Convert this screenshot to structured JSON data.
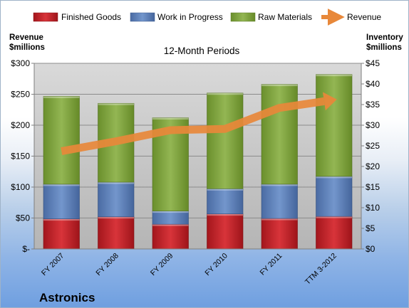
{
  "chart_data": {
    "type": "bar",
    "stacked": true,
    "title": "12-Month Periods",
    "company": "Astronics",
    "categories": [
      "FY 2007",
      "FY 2008",
      "FY 2009",
      "FY 2010",
      "FY 2011",
      "TTM 3-2012"
    ],
    "series": [
      {
        "name": "Finished Goods",
        "axis": "right",
        "color": "#c0292f",
        "values": [
          7.3,
          7.8,
          6.0,
          8.5,
          7.4,
          7.9
        ]
      },
      {
        "name": "Work in Progress",
        "axis": "right",
        "color": "#5b7fb8",
        "values": [
          8.4,
          8.4,
          3.2,
          6.1,
          8.3,
          9.7
        ]
      },
      {
        "name": "Raw Materials",
        "axis": "right",
        "color": "#7ea23f",
        "values": [
          21.3,
          19.1,
          22.6,
          23.2,
          24.2,
          24.7
        ]
      },
      {
        "name": "Revenue",
        "axis": "left",
        "type": "line",
        "color": "#e8883a",
        "values": [
          158,
          174,
          192,
          194,
          228,
          241
        ]
      }
    ],
    "left_axis": {
      "label_line1": "Revenue",
      "label_line2": "$millions",
      "ylim": [
        0,
        300
      ],
      "ticks": [
        0,
        50,
        100,
        150,
        200,
        250,
        300
      ],
      "tick_labels": [
        "$-",
        "$50",
        "$100",
        "$150",
        "$200",
        "$250",
        "$300"
      ]
    },
    "right_axis": {
      "label_line1": "Inventory",
      "label_line2": "$millions",
      "ylim": [
        0,
        45
      ],
      "ticks": [
        0,
        5,
        10,
        15,
        20,
        25,
        30,
        35,
        40,
        45
      ],
      "tick_labels": [
        "$0",
        "$5",
        "$10",
        "$15",
        "$20",
        "$25",
        "$30",
        "$35",
        "$40",
        "$45"
      ]
    },
    "grid": true,
    "legend_position": "top"
  }
}
